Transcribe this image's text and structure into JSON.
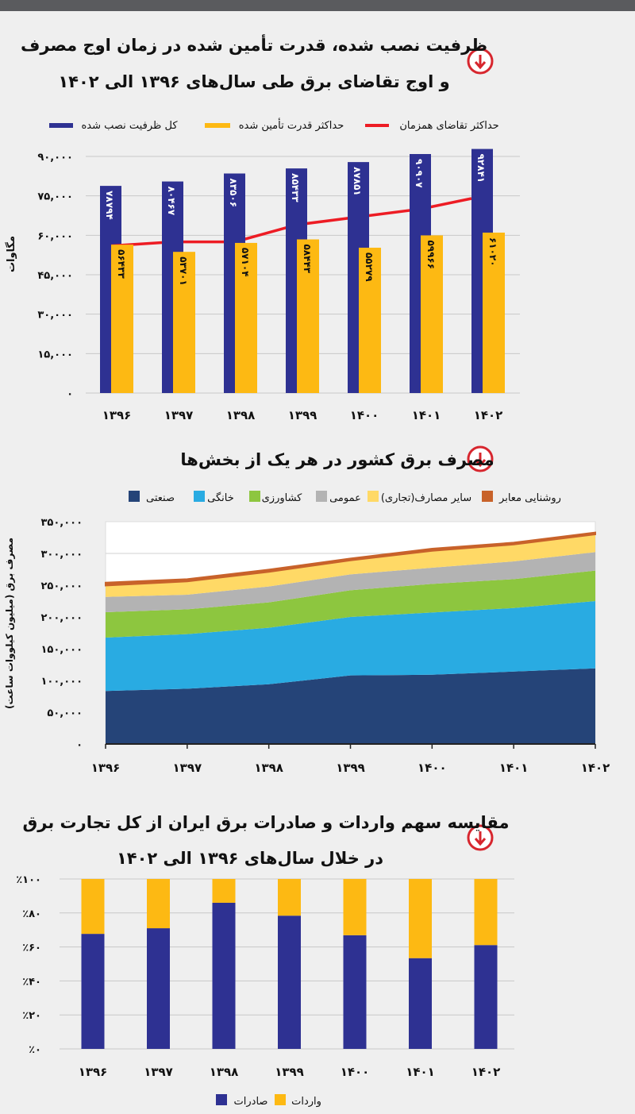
{
  "colors": {
    "blue": "#2e3192",
    "yellow": "#fdb913",
    "red": "#ed1c24",
    "icon_red": "#d7262e"
  },
  "icons": {
    "section_marker": "circle-arrow-down-icon"
  },
  "chart_data": [
    {
      "type": "bar",
      "title_line1": "ظرفیت نصب شده، قدرت تأمین شده در زمان اوج مصرف",
      "title_line2": "و اوج تقاضای برق طی سال‌های ۱۳۹۶ الی ۱۴۰۲",
      "ylabel": "مگاوات",
      "ylim": [
        0,
        90000
      ],
      "yticks": [
        0,
        15000,
        30000,
        45000,
        60000,
        75000,
        90000
      ],
      "ytick_labels": [
        "۰",
        "۱۵,۰۰۰",
        "۳۰,۰۰۰",
        "۴۵,۰۰۰",
        "۶۰,۰۰۰",
        "۷۵,۰۰۰",
        "۹۰,۰۰۰"
      ],
      "categories": [
        "۱۳۹۶",
        "۱۳۹۷",
        "۱۳۹۸",
        "۱۳۹۹",
        "۱۴۰۰",
        "۱۴۰۱",
        "۱۴۰۲"
      ],
      "grid": true,
      "legend_position": "top",
      "series": [
        {
          "name": "کل ظرفیت نصب شده",
          "kind": "bar",
          "color": "#2e3192",
          "values": [
            78794,
            80467,
            83506,
            85433,
            87851,
            90907,
            92841
          ]
        },
        {
          "name": "حداکثر قدرت تأمین شده",
          "kind": "bar",
          "color": "#fdb913",
          "values": [
            56433,
            53701,
            57104,
            58443,
            55279,
            59966,
            61020
          ]
        },
        {
          "name": "حداکثر تقاضای همزمان",
          "kind": "line",
          "color": "#ed1c24",
          "values": [
            56000,
            57500,
            57500,
            64000,
            67000,
            70000,
            74000
          ]
        }
      ]
    },
    {
      "type": "area",
      "title": "مصرف برق کشور در هر یک از بخش‌ها",
      "ylabel": "مصرف برق (میلیون کیلووات ساعت)",
      "ylim": [
        0,
        350000
      ],
      "yticks": [
        0,
        50000,
        100000,
        150000,
        200000,
        250000,
        300000,
        350000
      ],
      "ytick_labels": [
        "۰",
        "۵۰,۰۰۰",
        "۱۰۰,۰۰۰",
        "۱۵۰,۰۰۰",
        "۲۰۰,۰۰۰",
        "۲۵۰,۰۰۰",
        "۳۰۰,۰۰۰",
        "۳۵۰,۰۰۰"
      ],
      "categories": [
        "۱۳۹۶",
        "۱۳۹۷",
        "۱۳۹۸",
        "۱۳۹۹",
        "۱۴۰۰",
        "۱۴۰۱",
        "۱۴۰۲"
      ],
      "stacked": true,
      "legend_position": "top",
      "series": [
        {
          "name": "صنعتی",
          "color": "#254478",
          "values": [
            83500,
            87000,
            94000,
            108000,
            109000,
            114000,
            119000
          ]
        },
        {
          "name": "خانگی",
          "color": "#29abe2",
          "values": [
            84000,
            86000,
            89000,
            92000,
            98000,
            100000,
            106000
          ]
        },
        {
          "name": "کشاورزی",
          "color": "#8dc63f",
          "values": [
            40000,
            39000,
            40000,
            42000,
            45000,
            45500,
            48000
          ]
        },
        {
          "name": "عمومی",
          "color": "#b3b3b3",
          "values": [
            24000,
            23000,
            25000,
            25000,
            25500,
            28000,
            29000
          ]
        },
        {
          "name": "سایر مصارف(تجاری)",
          "color": "#ffd966",
          "values": [
            18000,
            21000,
            23000,
            22000,
            26500,
            26500,
            28000
          ]
        },
        {
          "name": "روشنایی معابر",
          "color": "#c8622a",
          "values": [
            4500,
            3500,
            3500,
            3000,
            3500,
            3000,
            3000
          ]
        }
      ]
    },
    {
      "type": "bar",
      "stacked": true,
      "title_line1": "مقایسه سهم واردات و صادرات برق ایران از کل تجارت برق",
      "title_line2": "در خلال سال‌های ۱۳۹۶ الی ۱۴۰۲",
      "ylim": [
        0,
        100
      ],
      "yticks": [
        0,
        20,
        40,
        60,
        80,
        100
      ],
      "ytick_labels": [
        "٪۰",
        "٪۲۰",
        "٪۴۰",
        "٪۶۰",
        "٪۸۰",
        "٪۱۰۰"
      ],
      "categories": [
        "۱۳۹۶",
        "۱۳۹۷",
        "۱۳۹۸",
        "۱۳۹۹",
        "۱۴۰۰",
        "۱۴۰۱",
        "۱۴۰۲"
      ],
      "legend_position": "bottom",
      "series": [
        {
          "name": "صادرات",
          "color": "#2e3192",
          "values": [
            67.7,
            71,
            86,
            78.4,
            66.9,
            53.4,
            61.1
          ]
        },
        {
          "name": "واردات",
          "color": "#fdb913",
          "values": [
            32.3,
            29,
            14,
            21.6,
            33.1,
            46.6,
            38.9
          ]
        }
      ]
    }
  ]
}
